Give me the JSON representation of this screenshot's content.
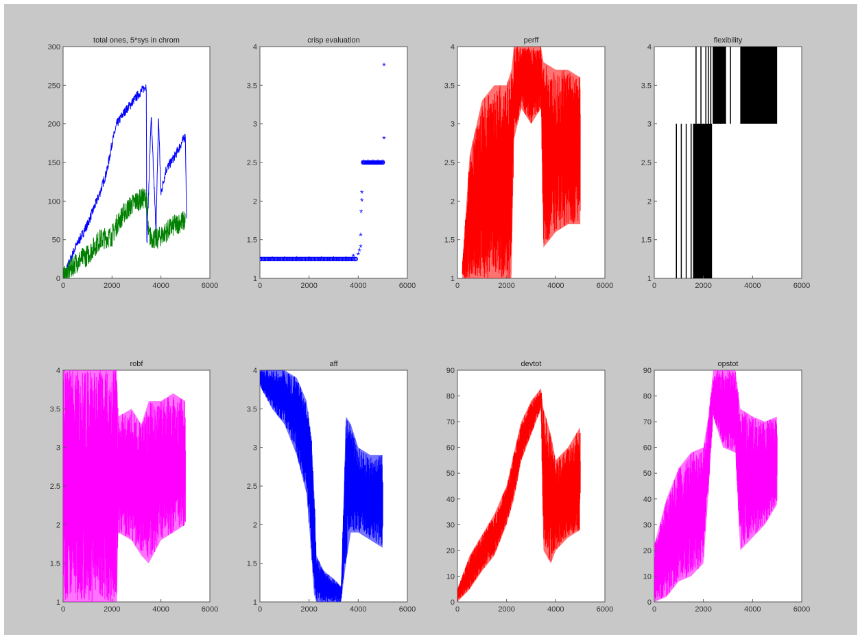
{
  "figure": {
    "background": "#c8c8c8",
    "axes_background": "#ffffff"
  },
  "chart_data": [
    {
      "type": "line",
      "title": "total ones, 5*sys in chrom",
      "xlim": [
        0,
        6000
      ],
      "ylim": [
        0,
        300
      ],
      "xticks": [
        0,
        2000,
        4000,
        6000
      ],
      "yticks": [
        0,
        50,
        100,
        150,
        200,
        250,
        300
      ],
      "series": [
        {
          "color": "#0000ff",
          "noise": 6,
          "points": [
            [
              0,
              0
            ],
            [
              500,
              40
            ],
            [
              1000,
              70
            ],
            [
              1500,
              110
            ],
            [
              1800,
              140
            ],
            [
              2000,
              175
            ],
            [
              2200,
              200
            ],
            [
              2500,
              215
            ],
            [
              3000,
              235
            ],
            [
              3400,
              250
            ],
            [
              3420,
              40
            ],
            [
              3600,
              210
            ],
            [
              3800,
              60
            ],
            [
              3900,
              210
            ],
            [
              4000,
              110
            ],
            [
              4200,
              140
            ],
            [
              4600,
              160
            ],
            [
              5000,
              185
            ],
            [
              5050,
              70
            ]
          ]
        },
        {
          "color": "#008000",
          "noise": 14,
          "points": [
            [
              0,
              0
            ],
            [
              500,
              20
            ],
            [
              1000,
              30
            ],
            [
              1500,
              50
            ],
            [
              2000,
              55
            ],
            [
              2200,
              70
            ],
            [
              2500,
              85
            ],
            [
              2800,
              95
            ],
            [
              3000,
              100
            ],
            [
              3400,
              105
            ],
            [
              3500,
              55
            ],
            [
              3800,
              50
            ],
            [
              4200,
              60
            ],
            [
              4600,
              70
            ],
            [
              5000,
              75
            ]
          ]
        }
      ]
    },
    {
      "type": "scatter",
      "title": "crisp evaluation",
      "xlim": [
        0,
        6000
      ],
      "ylim": [
        1,
        4
      ],
      "xticks": [
        0,
        2000,
        4000,
        6000
      ],
      "yticks": [
        1,
        1.5,
        2,
        2.5,
        3,
        3.5,
        4
      ],
      "series": [
        {
          "color": "#0000ff",
          "marker": "star",
          "points": [
            [
              0,
              1.25
            ],
            [
              500,
              1.25
            ],
            [
              1000,
              1.25
            ],
            [
              1500,
              1.25
            ],
            [
              2000,
              1.25
            ],
            [
              2500,
              1.25
            ],
            [
              3000,
              1.25
            ],
            [
              3500,
              1.25
            ],
            [
              3800,
              1.28
            ],
            [
              4000,
              1.3
            ],
            [
              4050,
              1.35
            ],
            [
              4100,
              1.4
            ],
            [
              4100,
              1.55
            ],
            [
              4120,
              1.85
            ],
            [
              4150,
              2.0
            ],
            [
              4150,
              2.1
            ],
            [
              4200,
              2.5
            ],
            [
              4400,
              2.5
            ],
            [
              4600,
              2.5
            ],
            [
              4800,
              2.5
            ],
            [
              5000,
              2.5
            ],
            [
              5050,
              2.8
            ],
            [
              5050,
              3.75
            ]
          ]
        }
      ]
    },
    {
      "type": "line",
      "title": "perff",
      "xlim": [
        0,
        6000
      ],
      "ylim": [
        1,
        4
      ],
      "xticks": [
        0,
        2000,
        4000,
        6000
      ],
      "yticks": [
        1,
        1.5,
        2,
        2.5,
        3,
        3.5,
        4
      ],
      "series": [
        {
          "color": "#ff0000",
          "band": [
            [
              200,
              1,
              1.2
            ],
            [
              500,
              1,
              2.6
            ],
            [
              1000,
              1,
              3.3
            ],
            [
              1500,
              1,
              3.5
            ],
            [
              2000,
              1,
              3.5
            ],
            [
              2200,
              1,
              3.7
            ],
            [
              2300,
              2.8,
              4
            ],
            [
              2600,
              3.2,
              4
            ],
            [
              3000,
              3.0,
              4
            ],
            [
              3400,
              3.2,
              4
            ],
            [
              3500,
              1.4,
              3.8
            ],
            [
              4000,
              1.6,
              3.7
            ],
            [
              4500,
              1.7,
              3.7
            ],
            [
              5000,
              1.7,
              3.6
            ]
          ]
        }
      ]
    },
    {
      "type": "line",
      "title": "flexibility",
      "xlim": [
        0,
        6000
      ],
      "ylim": [
        1,
        4
      ],
      "xticks": [
        0,
        2000,
        4000,
        6000
      ],
      "yticks": [
        1,
        1.5,
        2,
        2.5,
        3,
        3.5,
        4
      ],
      "series": [
        {
          "color": "#000000",
          "bars": [
            [
              900,
              1,
              3
            ],
            [
              1100,
              1,
              3
            ],
            [
              1300,
              1,
              3
            ],
            [
              1500,
              1,
              3
            ],
            [
              1600,
              1,
              3
            ],
            [
              1700,
              1,
              3
            ],
            [
              1800,
              1,
              3
            ],
            [
              2000,
              1,
              3
            ],
            [
              2200,
              1,
              3
            ],
            [
              2300,
              1,
              3
            ],
            [
              1700,
              3,
              4
            ],
            [
              1900,
              3,
              4
            ],
            [
              2100,
              3,
              4
            ],
            [
              2200,
              3,
              4
            ],
            [
              2300,
              3,
              4
            ],
            [
              2400,
              3,
              4
            ],
            [
              2500,
              3,
              4
            ],
            [
              2600,
              3,
              4
            ],
            [
              2700,
              3,
              4
            ],
            [
              2900,
              3,
              4
            ],
            [
              3100,
              3,
              4
            ]
          ],
          "blocks": [
            [
              1600,
              2350,
              1,
              3
            ],
            [
              2400,
              2900,
              3,
              4
            ],
            [
              3500,
              5000,
              3,
              4
            ]
          ]
        }
      ]
    },
    {
      "type": "line",
      "title": "robf",
      "xlim": [
        0,
        6000
      ],
      "ylim": [
        1,
        4
      ],
      "xticks": [
        0,
        2000,
        4000,
        6000
      ],
      "yticks": [
        1,
        1.5,
        2,
        2.5,
        3,
        3.5,
        4
      ],
      "series": [
        {
          "color": "#ff00ff",
          "band": [
            [
              0,
              1,
              4
            ],
            [
              1000,
              1,
              4
            ],
            [
              2200,
              1,
              4
            ],
            [
              2250,
              1.9,
              3.4
            ],
            [
              2800,
              1.8,
              3.5
            ],
            [
              3200,
              1.6,
              3.3
            ],
            [
              3500,
              1.5,
              3.6
            ],
            [
              4000,
              1.8,
              3.6
            ],
            [
              4500,
              1.9,
              3.7
            ],
            [
              5000,
              2.0,
              3.6
            ]
          ]
        }
      ]
    },
    {
      "type": "line",
      "title": "aff",
      "xlim": [
        0,
        6000
      ],
      "ylim": [
        1,
        4
      ],
      "xticks": [
        0,
        2000,
        4000,
        6000
      ],
      "yticks": [
        1,
        1.5,
        2,
        2.5,
        3,
        3.5,
        4
      ],
      "series": [
        {
          "color": "#0000ff",
          "band": [
            [
              0,
              3.8,
              4
            ],
            [
              500,
              3.5,
              4
            ],
            [
              1000,
              3.3,
              4
            ],
            [
              1500,
              2.9,
              3.9
            ],
            [
              1900,
              2.4,
              3.6
            ],
            [
              2100,
              1.6,
              3.1
            ],
            [
              2200,
              1.1,
              2.5
            ],
            [
              2300,
              1,
              1.6
            ],
            [
              2600,
              1,
              1.4
            ],
            [
              3000,
              1,
              1.3
            ],
            [
              3300,
              1,
              1.2
            ],
            [
              3500,
              1.5,
              3.4
            ],
            [
              3700,
              1.9,
              3.3
            ],
            [
              4000,
              1.9,
              3.0
            ],
            [
              4500,
              1.8,
              2.9
            ],
            [
              5000,
              1.7,
              2.9
            ]
          ]
        }
      ]
    },
    {
      "type": "line",
      "title": "devtot",
      "xlim": [
        0,
        6000
      ],
      "ylim": [
        0,
        90
      ],
      "xticks": [
        0,
        2000,
        4000,
        6000
      ],
      "yticks": [
        0,
        10,
        20,
        30,
        40,
        50,
        60,
        70,
        80,
        90
      ],
      "series": [
        {
          "color": "#ff0000",
          "band": [
            [
              0,
              0,
              5
            ],
            [
              500,
              5,
              18
            ],
            [
              1000,
              12,
              26
            ],
            [
              1500,
              18,
              34
            ],
            [
              2000,
              30,
              45
            ],
            [
              2300,
              40,
              58
            ],
            [
              2600,
              55,
              70
            ],
            [
              3000,
              65,
              78
            ],
            [
              3400,
              75,
              83
            ],
            [
              3500,
              20,
              75
            ],
            [
              3800,
              15,
              65
            ],
            [
              4000,
              20,
              55
            ],
            [
              4500,
              25,
              60
            ],
            [
              5000,
              28,
              68
            ]
          ]
        }
      ]
    },
    {
      "type": "line",
      "title": "opstot",
      "xlim": [
        0,
        6000
      ],
      "ylim": [
        0,
        90
      ],
      "xticks": [
        0,
        2000,
        4000,
        6000
      ],
      "yticks": [
        0,
        10,
        20,
        30,
        40,
        50,
        60,
        70,
        80,
        90
      ],
      "series": [
        {
          "color": "#ff00ff",
          "band": [
            [
              0,
              0,
              22
            ],
            [
              500,
              2,
              40
            ],
            [
              1000,
              8,
              52
            ],
            [
              1500,
              10,
              58
            ],
            [
              2000,
              15,
              60
            ],
            [
              2200,
              42,
              72
            ],
            [
              2400,
              72,
              90
            ],
            [
              2800,
              60,
              90
            ],
            [
              3300,
              58,
              90
            ],
            [
              3500,
              20,
              75
            ],
            [
              4000,
              25,
              72
            ],
            [
              4500,
              30,
              70
            ],
            [
              5000,
              38,
              72
            ]
          ]
        }
      ]
    }
  ]
}
